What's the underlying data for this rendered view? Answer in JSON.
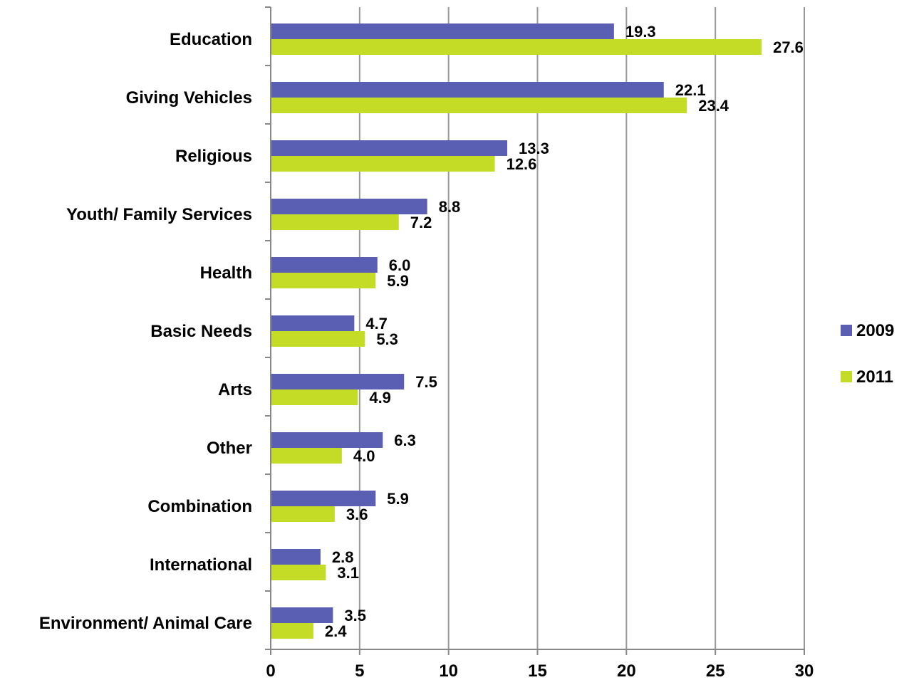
{
  "chart_data": {
    "type": "bar",
    "orientation": "horizontal",
    "categories": [
      "Education",
      "Giving Vehicles",
      "Religious",
      "Youth/ Family Services",
      "Health",
      "Basic Needs",
      "Arts",
      "Other",
      "Combination",
      "International",
      "Environment/ Animal Care"
    ],
    "series": [
      {
        "name": "2009",
        "color": "#5b5fb4",
        "values": [
          19.3,
          22.1,
          13.3,
          8.8,
          6.0,
          4.7,
          7.5,
          6.3,
          5.9,
          2.8,
          3.5
        ],
        "labels": [
          "19.3",
          "22.1",
          "13.3",
          "8.8",
          "6.0",
          "4.7",
          "7.5",
          "6.3",
          "5.9",
          "2.8",
          "3.5"
        ]
      },
      {
        "name": "2011",
        "color": "#c5dc26",
        "values": [
          27.6,
          23.4,
          12.6,
          7.2,
          5.9,
          5.3,
          4.9,
          4.0,
          3.6,
          3.1,
          2.4
        ],
        "labels": [
          "27.6",
          "23.4",
          "12.6",
          "7.2",
          "5.9",
          "5.3",
          "4.9",
          "4.0",
          "3.6",
          "3.1",
          "2.4"
        ]
      }
    ],
    "xlim": [
      0,
      30
    ],
    "ticks": [
      0,
      5,
      10,
      15,
      20,
      25,
      30
    ],
    "tick_labels": [
      "0",
      "5",
      "10",
      "15",
      "20",
      "25",
      "30"
    ],
    "grid": "vertical",
    "gridline_color": "#999999",
    "legend_position": "right",
    "title": "",
    "xlabel": "",
    "ylabel": ""
  }
}
